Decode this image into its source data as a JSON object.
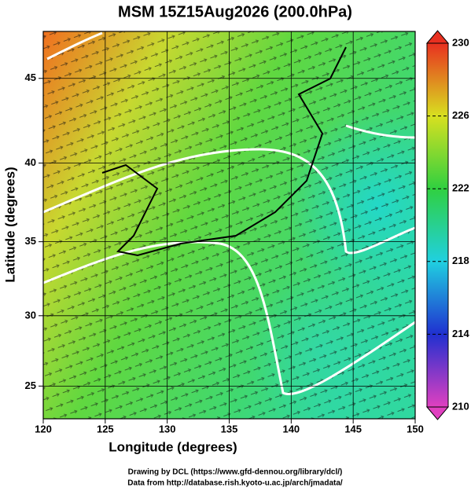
{
  "title": "MSM 15Z15Aug2026 (200.0hPa)",
  "projection": "mercator",
  "xaxis": {
    "label": "Longitude (degrees)",
    "lim": [
      120,
      150
    ],
    "ticks": [
      120,
      125,
      130,
      135,
      140,
      145,
      150
    ]
  },
  "yaxis": {
    "label": "Latitude  (degrees)",
    "lim": [
      22.6,
      47.6
    ],
    "ticks": [
      25,
      30,
      35,
      40,
      45
    ]
  },
  "colorbar": {
    "lim": [
      210,
      230
    ],
    "ticks": [
      210,
      214,
      218,
      222,
      226,
      230
    ],
    "colors": [
      "#e040c0",
      "#2030d0",
      "#20d0e0",
      "#30d040",
      "#d8e020",
      "#e83020"
    ]
  },
  "footer": [
    "Drawing by DCL (https://www.gfd-dennou.org/library/dcl/)",
    "Data from http://database.rish.kyoto-u.ac.jp/arch/jmadata/"
  ]
}
